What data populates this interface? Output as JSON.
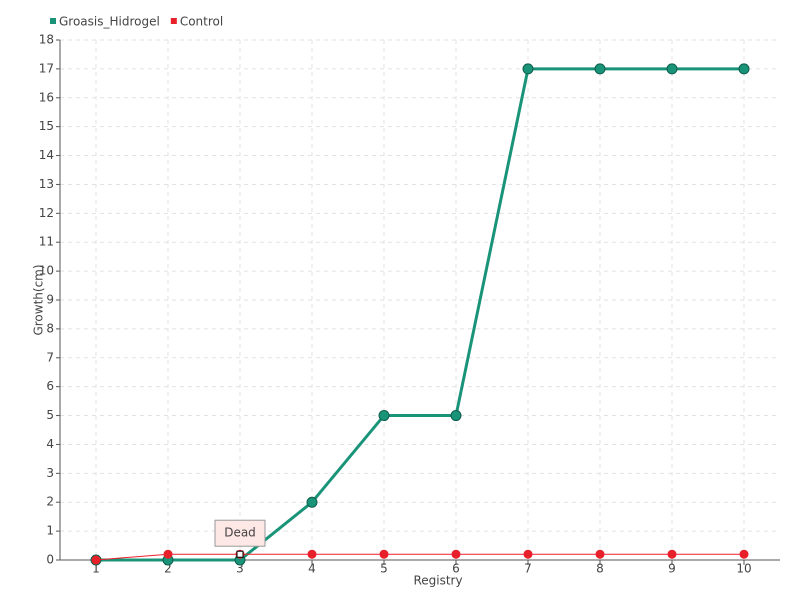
{
  "chart_data": {
    "type": "line",
    "x": [
      1,
      2,
      3,
      4,
      5,
      6,
      7,
      8,
      9,
      10
    ],
    "xlim": [
      0.5,
      10.5
    ],
    "xticks": [
      1,
      2,
      3,
      4,
      5,
      6,
      7,
      8,
      9,
      10
    ],
    "ylim": [
      0,
      18
    ],
    "yticks": [
      0,
      1,
      2,
      3,
      4,
      5,
      6,
      7,
      8,
      9,
      10,
      11,
      12,
      13,
      14,
      15,
      16,
      17,
      18
    ],
    "xlabel": "Registry",
    "ylabel": "Growth(cm)",
    "grid": true,
    "legend": "top-left",
    "series": [
      {
        "name": "Groasis_Hidrogel",
        "color": "#1a9479",
        "values": [
          0,
          0,
          0,
          2,
          5,
          5,
          17,
          17,
          17,
          17
        ]
      },
      {
        "name": "Control",
        "color": "#e8202a",
        "values": [
          0,
          0.2,
          0.2,
          0.2,
          0.2,
          0.2,
          0.2,
          0.2,
          0.2,
          0.2
        ]
      }
    ],
    "annotations": [
      {
        "text": "Dead",
        "x": 3,
        "y": 0.2
      }
    ]
  }
}
